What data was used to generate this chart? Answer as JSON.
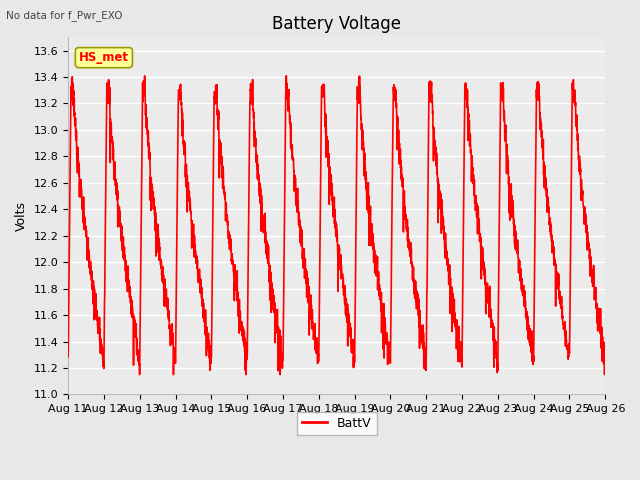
{
  "title": "Battery Voltage",
  "subtitle": "No data for f_Pwr_EXO",
  "ylabel": "Volts",
  "ylim": [
    11.0,
    13.7
  ],
  "yticks": [
    11.0,
    11.2,
    11.4,
    11.6,
    11.8,
    12.0,
    12.2,
    12.4,
    12.6,
    12.8,
    13.0,
    13.2,
    13.4,
    13.6
  ],
  "xlim_start": 11,
  "xlim_end": 26,
  "xtick_labels": [
    "Aug 11",
    "Aug 12",
    "Aug 13",
    "Aug 14",
    "Aug 15",
    "Aug 16",
    "Aug 17",
    "Aug 18",
    "Aug 19",
    "Aug 20",
    "Aug 21",
    "Aug 22",
    "Aug 23",
    "Aug 24",
    "Aug 25",
    "Aug 26"
  ],
  "line_color": "#FF0000",
  "line_width": 1.2,
  "legend_label": "BattV",
  "legend_box_color": "#FFFF99",
  "legend_box_edge": "#999900",
  "inset_label": "HS_met",
  "bg_color": "#E8E8E8",
  "plot_bg": "#EBEBEB",
  "grid_color": "#FFFFFF",
  "title_fontsize": 12,
  "label_fontsize": 9,
  "tick_fontsize": 8
}
